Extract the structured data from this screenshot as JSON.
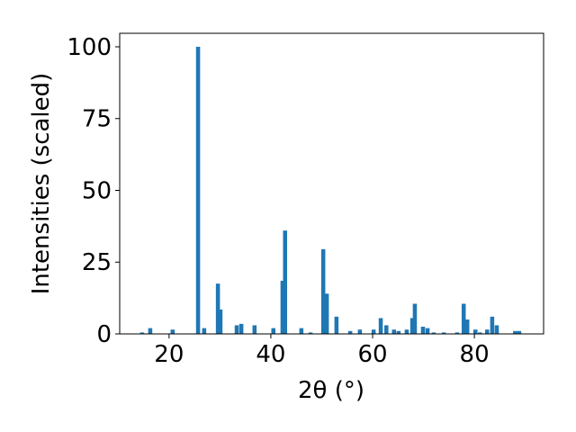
{
  "chart_data": {
    "type": "bar",
    "xlabel": "2θ (°)",
    "ylabel": "Intensities (scaled)",
    "x": [
      14.7,
      16.3,
      20.7,
      25.7,
      26.9,
      29.6,
      30.1,
      33.3,
      34.2,
      36.8,
      40.5,
      42.3,
      42.8,
      46.0,
      47.8,
      50.3,
      51.0,
      52.9,
      55.6,
      57.5,
      60.2,
      61.6,
      62.7,
      64.2,
      65.1,
      66.7,
      67.8,
      68.3,
      69.9,
      70.8,
      72.0,
      74.0,
      76.6,
      77.9,
      78.6,
      80.2,
      81.1,
      82.5,
      83.5,
      84.4,
      88.0,
      88.8
    ],
    "values": [
      0.5,
      2,
      1.5,
      100,
      2,
      17.5,
      8.5,
      3,
      3.5,
      3,
      2,
      18.5,
      36,
      2,
      0.5,
      29.5,
      14,
      6,
      1,
      1.5,
      1.5,
      5.5,
      3,
      1.5,
      1,
      1.5,
      5.5,
      10.5,
      2.5,
      2,
      0.5,
      0.5,
      0.5,
      10.5,
      5,
      1.5,
      0.5,
      1.5,
      6,
      3,
      1,
      1
    ],
    "color": "#1f77b4",
    "xlim": [
      10.3,
      93.6
    ],
    "ylim": [
      0,
      104.7
    ],
    "xticks": [
      20,
      40,
      60,
      80
    ],
    "yticks": [
      0,
      25,
      50,
      75,
      100
    ],
    "grid": false
  }
}
